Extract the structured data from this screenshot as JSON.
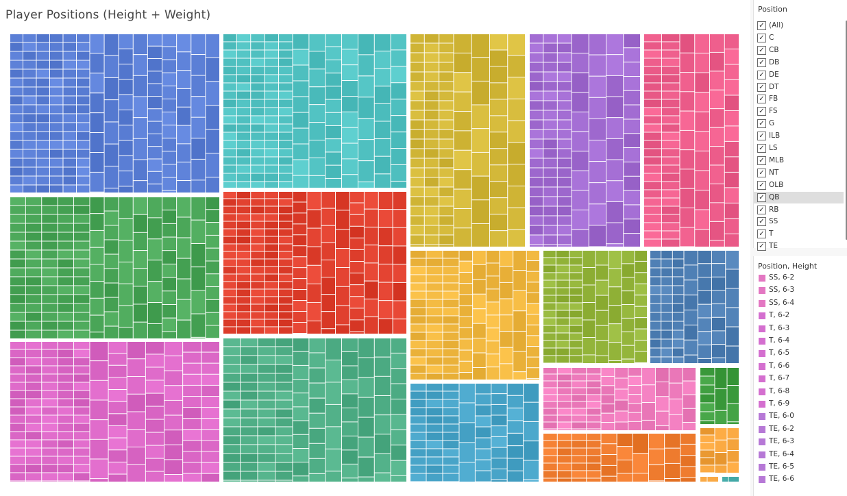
{
  "title": "Player Positions (Height + Weight)",
  "filter": {
    "title": "Position",
    "items": [
      {
        "label": "(All)",
        "checked": true
      },
      {
        "label": "C",
        "checked": true
      },
      {
        "label": "CB",
        "checked": true
      },
      {
        "label": "DB",
        "checked": true
      },
      {
        "label": "DE",
        "checked": true
      },
      {
        "label": "DT",
        "checked": true
      },
      {
        "label": "FB",
        "checked": true
      },
      {
        "label": "FS",
        "checked": true
      },
      {
        "label": "G",
        "checked": true
      },
      {
        "label": "ILB",
        "checked": true
      },
      {
        "label": "LS",
        "checked": true
      },
      {
        "label": "MLB",
        "checked": true
      },
      {
        "label": "NT",
        "checked": true
      },
      {
        "label": "OLB",
        "checked": true
      },
      {
        "label": "QB",
        "checked": true,
        "highlighted": true
      },
      {
        "label": "RB",
        "checked": true
      },
      {
        "label": "SS",
        "checked": true
      },
      {
        "label": "T",
        "checked": true
      },
      {
        "label": "TE",
        "checked": true
      }
    ]
  },
  "legend": {
    "title": "Position, Height",
    "items": [
      {
        "label": "SS, 6-2",
        "color": "#e377c2"
      },
      {
        "label": "SS, 6-3",
        "color": "#e377c2"
      },
      {
        "label": "SS, 6-4",
        "color": "#e377c2"
      },
      {
        "label": "T, 6-2",
        "color": "#d46fcf"
      },
      {
        "label": "T, 6-3",
        "color": "#d46fcf"
      },
      {
        "label": "T, 6-4",
        "color": "#d46fcf"
      },
      {
        "label": "T, 6-5",
        "color": "#d46fcf"
      },
      {
        "label": "T, 6-6",
        "color": "#d46fcf"
      },
      {
        "label": "T, 6-7",
        "color": "#d46fcf"
      },
      {
        "label": "T, 6-8",
        "color": "#d46fcf"
      },
      {
        "label": "T, 6-9",
        "color": "#d46fcf"
      },
      {
        "label": "TE, 6-0",
        "color": "#b678d6"
      },
      {
        "label": "TE, 6-2",
        "color": "#b678d6"
      },
      {
        "label": "TE, 6-3",
        "color": "#b678d6"
      },
      {
        "label": "TE, 6-4",
        "color": "#b678d6"
      },
      {
        "label": "TE, 6-5",
        "color": "#b678d6"
      },
      {
        "label": "TE, 6-6",
        "color": "#b678d6"
      }
    ]
  },
  "chart_data": {
    "type": "treemap",
    "groups": [
      {
        "color": "#5b7fd6"
      },
      {
        "color": "#52c3c3"
      },
      {
        "color": "#d4b93a"
      },
      {
        "color": "#a16bd1"
      },
      {
        "color": "#ee5e8c"
      },
      {
        "color": "#4aa658"
      },
      {
        "color": "#e0402e"
      },
      {
        "color": "#f0b73f"
      },
      {
        "color": "#93b43a"
      },
      {
        "color": "#4e7fb4"
      },
      {
        "color": "#dc68c7"
      },
      {
        "color": "#4fae86"
      },
      {
        "color": "#49a5c9"
      },
      {
        "color": "#ef7cbd"
      },
      {
        "color": "#3f9e40"
      },
      {
        "color": "#ee7b2e"
      },
      {
        "color": "#f3a23b"
      },
      {
        "color": "#ee9e3a"
      },
      {
        "color": "#4cb2b0"
      }
    ]
  }
}
